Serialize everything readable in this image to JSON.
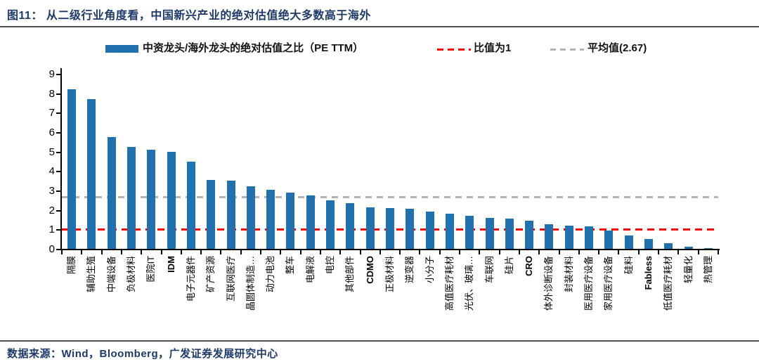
{
  "header": {
    "title": "图11： 从二级行业角度看，中国新兴产业的绝对估值绝大多数高于海外"
  },
  "legend": {
    "series_label": "中资龙头/海外龙头的绝对估值之比（PE TTM）",
    "ratio_line_label": "比值为1",
    "mean_line_label": "平均值(2.67)"
  },
  "chart_data": {
    "type": "bar",
    "title": "中资龙头/海外龙头的绝对估值之比（PE TTM）",
    "categories": [
      "隔膜",
      "辅助生殖",
      "中端设备",
      "负极材料",
      "医院IT",
      "IDM",
      "电子元器件",
      "矿产资源",
      "互联网医疗",
      "晶圆体制造…",
      "动力电池",
      "整车",
      "电解液",
      "电控",
      "其他部件",
      "CDMO",
      "正极材料",
      "逆变器",
      "小分子",
      "高值医疗耗材",
      "光伏、玻璃…",
      "车联网",
      "硅片",
      "CRO",
      "体外诊断设备",
      "封装材料",
      "医用医疗设备",
      "家用医疗设备",
      "硅料",
      "Fabless",
      "低值医疗耗材",
      "轻量化",
      "热管理"
    ],
    "values": [
      8.2,
      7.7,
      5.75,
      5.25,
      5.1,
      5.0,
      4.5,
      3.55,
      3.5,
      3.2,
      3.05,
      2.9,
      2.75,
      2.5,
      2.35,
      2.15,
      2.1,
      2.05,
      1.9,
      1.8,
      1.7,
      1.6,
      1.55,
      1.45,
      1.25,
      1.2,
      1.15,
      0.95,
      0.7,
      0.5,
      0.3,
      0.1,
      0.05
    ],
    "ylim": [
      0,
      9
    ],
    "yticks": [
      0,
      1,
      2,
      3,
      4,
      5,
      6,
      7,
      8,
      9
    ],
    "xlabel": "",
    "ylabel": "",
    "grid": false,
    "legend_position": "top",
    "bar_color": "#2071ad",
    "reference_lines": [
      {
        "name": "比值为1",
        "value": 1,
        "color": "#ff0000",
        "style": "dashed"
      },
      {
        "name": "平均值",
        "value": 2.67,
        "color": "#b3b3b3",
        "style": "dashed"
      }
    ]
  },
  "footer": {
    "source": "数据来源：Wind，Bloomberg，广发证券发展研究中心"
  }
}
